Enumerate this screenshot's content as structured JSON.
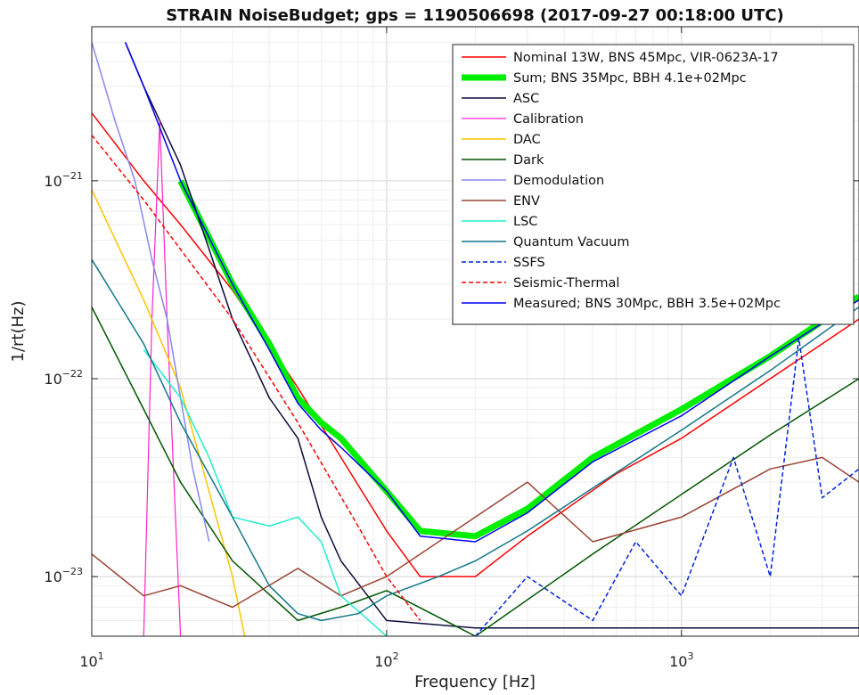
{
  "chart_data": {
    "type": "line",
    "title": "STRAIN NoiseBudget; gps = 1190506698 (2017-09-27 00:18:00 UTC)",
    "xlabel": "Frequency [Hz]",
    "ylabel": "1/rt(Hz)",
    "xscale": "log",
    "yscale": "log",
    "xlim": [
      10,
      4000
    ],
    "ylim": [
      5e-24,
      6e-21
    ],
    "grid": true,
    "legend_position": "top-right",
    "x_ticks": [
      {
        "value": 10,
        "base": "10",
        "exp": "1"
      },
      {
        "value": 100,
        "base": "10",
        "exp": "2"
      },
      {
        "value": 1000,
        "base": "10",
        "exp": "3"
      }
    ],
    "y_ticks": [
      {
        "value": 1e-21,
        "base": "10",
        "exp": "−21"
      },
      {
        "value": 1e-22,
        "base": "10",
        "exp": "−22"
      },
      {
        "value": 1e-23,
        "base": "10",
        "exp": "−23"
      }
    ],
    "series": [
      {
        "name": "Nominal 13W, BNS 45Mpc, VIR-0623A-17",
        "color": "#ff0000",
        "width": 1.5,
        "dash": "",
        "x": [
          10,
          15,
          20,
          30,
          50,
          70,
          100,
          130,
          200,
          300,
          600,
          1000,
          2000,
          4000
        ],
        "y": [
          2.2e-21,
          1e-21,
          6e-22,
          2.8e-22,
          9e-23,
          4e-23,
          1.7e-23,
          1e-23,
          1e-23,
          1.6e-23,
          3.3e-23,
          5e-23,
          1e-22,
          2e-22
        ]
      },
      {
        "name": "Sum; BNS 35Mpc, BBH 4.1e+02Mpc",
        "color": "#00ee00",
        "width": 7,
        "dash": "",
        "x": [
          20,
          30,
          40,
          50,
          60,
          70,
          100,
          130,
          200,
          300,
          500,
          1000,
          2000,
          4000
        ],
        "y": [
          1e-21,
          3e-22,
          1.5e-22,
          8e-23,
          6e-23,
          5e-23,
          2.7e-23,
          1.7e-23,
          1.6e-23,
          2.2e-23,
          4e-23,
          7e-23,
          1.3e-22,
          2.6e-22
        ]
      },
      {
        "name": "ASC",
        "color": "#0b0b3b",
        "width": 1.5,
        "dash": "",
        "x": [
          13,
          15,
          20,
          25,
          30,
          40,
          50,
          60,
          70,
          100,
          200,
          500,
          1000,
          2000,
          4000
        ],
        "y": [
          5e-21,
          3e-21,
          1.2e-21,
          4.5e-22,
          2e-22,
          8e-23,
          5e-23,
          2e-23,
          1.2e-23,
          6e-24,
          5.5e-24,
          5.5e-24,
          5.5e-24,
          5.5e-24,
          5.5e-24
        ]
      },
      {
        "name": "Calibration",
        "color": "#ff22cc",
        "width": 1.2,
        "dash": "",
        "x": [
          15,
          16,
          17,
          18,
          20
        ],
        "y": [
          5e-24,
          2e-22,
          2e-21,
          2e-22,
          5e-24
        ]
      },
      {
        "name": "DAC",
        "color": "#ffc400",
        "width": 1.5,
        "dash": "",
        "x": [
          10,
          15,
          20,
          30,
          33
        ],
        "y": [
          9e-22,
          2.5e-22,
          9e-23,
          1e-23,
          5e-24
        ]
      },
      {
        "name": "Dark",
        "color": "#005500",
        "width": 1.5,
        "dash": "",
        "x": [
          10,
          15,
          20,
          30,
          50,
          70,
          100,
          200,
          500,
          1000,
          2000,
          4000
        ],
        "y": [
          2.3e-22,
          7e-23,
          3e-23,
          1.2e-23,
          6e-24,
          7e-24,
          8.5e-24,
          5e-24,
          1.3e-23,
          2.6e-23,
          5.2e-23,
          1e-22
        ]
      },
      {
        "name": "Demodulation",
        "color": "#8888ee",
        "width": 1.5,
        "dash": "",
        "x": [
          10,
          12,
          14,
          16,
          18,
          20,
          22,
          25
        ],
        "y": [
          5e-21,
          2e-21,
          1e-21,
          4e-22,
          2e-22,
          8e-23,
          3.5e-23,
          1.5e-23
        ]
      },
      {
        "name": "ENV",
        "color": "#994433",
        "width": 1.5,
        "dash": "",
        "x": [
          10,
          15,
          20,
          30,
          50,
          70,
          100,
          200,
          300,
          500,
          1000,
          2000,
          3000,
          4000
        ],
        "y": [
          1.3e-23,
          8e-24,
          9e-24,
          7e-24,
          1.1e-23,
          8e-24,
          1e-23,
          2e-23,
          3e-23,
          1.5e-23,
          2e-23,
          3.5e-23,
          4e-23,
          3e-23
        ]
      },
      {
        "name": "LSC",
        "color": "#22eecc",
        "width": 1.5,
        "dash": "",
        "x": [
          15,
          20,
          25,
          30,
          40,
          50,
          60,
          70,
          100
        ],
        "y": [
          1.4e-22,
          8e-23,
          4e-23,
          2e-23,
          1.8e-23,
          2e-23,
          1.5e-23,
          8e-24,
          5e-24
        ]
      },
      {
        "name": "Quantum Vacuum",
        "color": "#117788",
        "width": 1.5,
        "dash": "",
        "x": [
          10,
          15,
          20,
          30,
          40,
          50,
          60,
          80,
          100,
          150,
          200,
          300,
          500,
          1000,
          2000,
          4000
        ],
        "y": [
          4e-22,
          1.5e-22,
          6e-23,
          2e-23,
          9e-24,
          6.5e-24,
          6e-24,
          6.5e-24,
          8e-24,
          1e-23,
          1.2e-23,
          1.7e-23,
          2.8e-23,
          5.5e-23,
          1.1e-22,
          2.3e-22
        ]
      },
      {
        "name": "SSFS",
        "color": "#0022dd",
        "width": 1.5,
        "dash": "5,3",
        "x": [
          200,
          300,
          500,
          700,
          1000,
          1500,
          2000,
          2500,
          3000,
          4000
        ],
        "y": [
          5e-24,
          1e-23,
          6e-24,
          1.5e-23,
          8e-24,
          4e-23,
          1e-23,
          1.6e-22,
          2.5e-23,
          3.5e-23
        ]
      },
      {
        "name": "Seismic-Thermal",
        "color": "#ff0000",
        "width": 1.5,
        "dash": "5,3",
        "x": [
          10,
          15,
          20,
          30,
          50,
          80,
          100,
          130
        ],
        "y": [
          1.7e-21,
          8e-22,
          4.5e-22,
          2e-22,
          6e-23,
          1.8e-23,
          1e-23,
          6e-24
        ]
      },
      {
        "name": "Measured; BNS 30Mpc, BBH 3.5e+02Mpc",
        "color": "#0000ee",
        "width": 1.5,
        "dash": "",
        "x": [
          13,
          15,
          20,
          30,
          40,
          50,
          60,
          70,
          100,
          130,
          200,
          300,
          500,
          1000,
          2000,
          4000
        ],
        "y": [
          5e-21,
          3e-21,
          1e-21,
          3e-22,
          1.4e-22,
          7.5e-23,
          5.5e-23,
          4.5e-23,
          2.7e-23,
          1.6e-23,
          1.5e-23,
          2.1e-23,
          3.8e-23,
          6.5e-23,
          1.3e-22,
          2.5e-22
        ]
      }
    ]
  }
}
